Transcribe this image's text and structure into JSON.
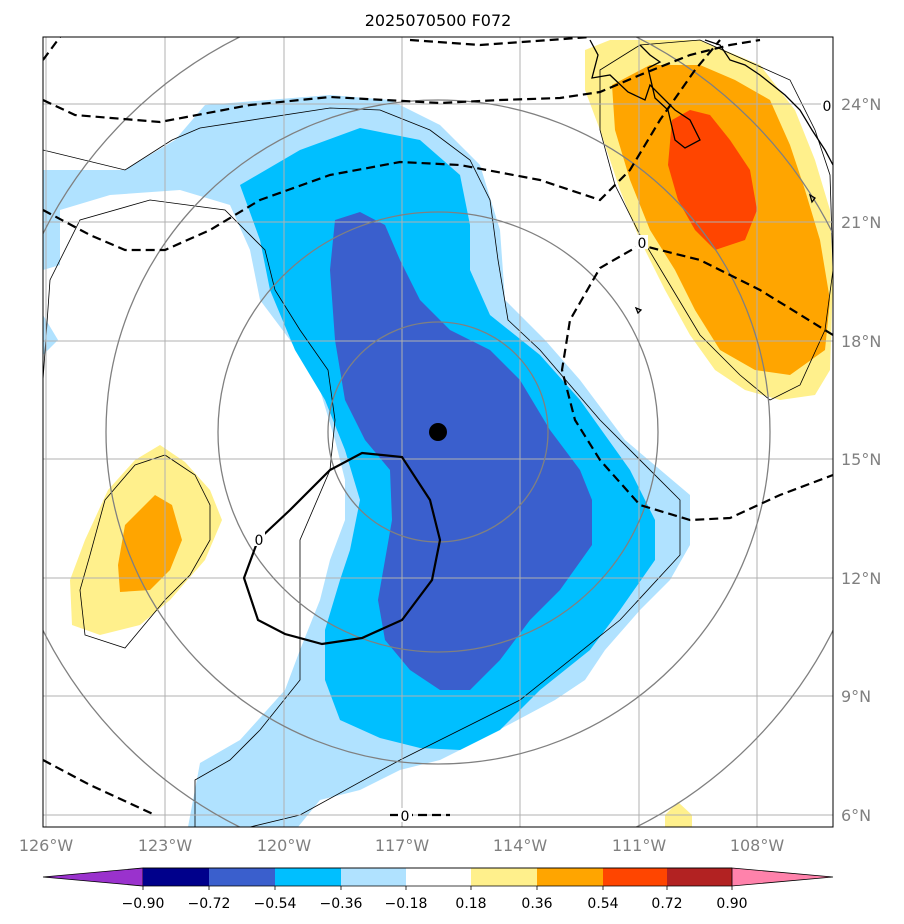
{
  "title": "2025070500 F072",
  "map": {
    "lon_labels": [
      "126°W",
      "123°W",
      "120°W",
      "117°W",
      "114°W",
      "111°W",
      "108°W"
    ],
    "lat_labels": [
      "6°N",
      "9°N",
      "12°N",
      "15°N",
      "18°N",
      "21°N",
      "24°N"
    ],
    "center_marker": "storm-center",
    "contour_labels": [
      "0",
      "0",
      "0",
      "0"
    ],
    "fill_colors": {
      "neg_090": "#9a32cd",
      "neg_072": "#00008b",
      "neg_054": "#3a5fcd",
      "neg_036": "#00bfff",
      "neg_018": "#b0e2ff",
      "pos_018": "#fff08c",
      "pos_036": "#ffa500",
      "pos_054": "#ff4500",
      "pos_072": "#b22222",
      "pos_090": "#ff82ab"
    }
  },
  "colorbar": {
    "ticks": [
      "−0.90",
      "−0.72",
      "−0.54",
      "−0.36",
      "−0.18",
      "0.18",
      "0.36",
      "0.54",
      "0.72",
      "0.90"
    ],
    "colors": [
      "#9a32cd",
      "#00008b",
      "#3a5fcd",
      "#00bfff",
      "#b0e2ff",
      "#ffffff",
      "#fff08c",
      "#ffa500",
      "#ff4500",
      "#b22222",
      "#ff82ab"
    ]
  }
}
